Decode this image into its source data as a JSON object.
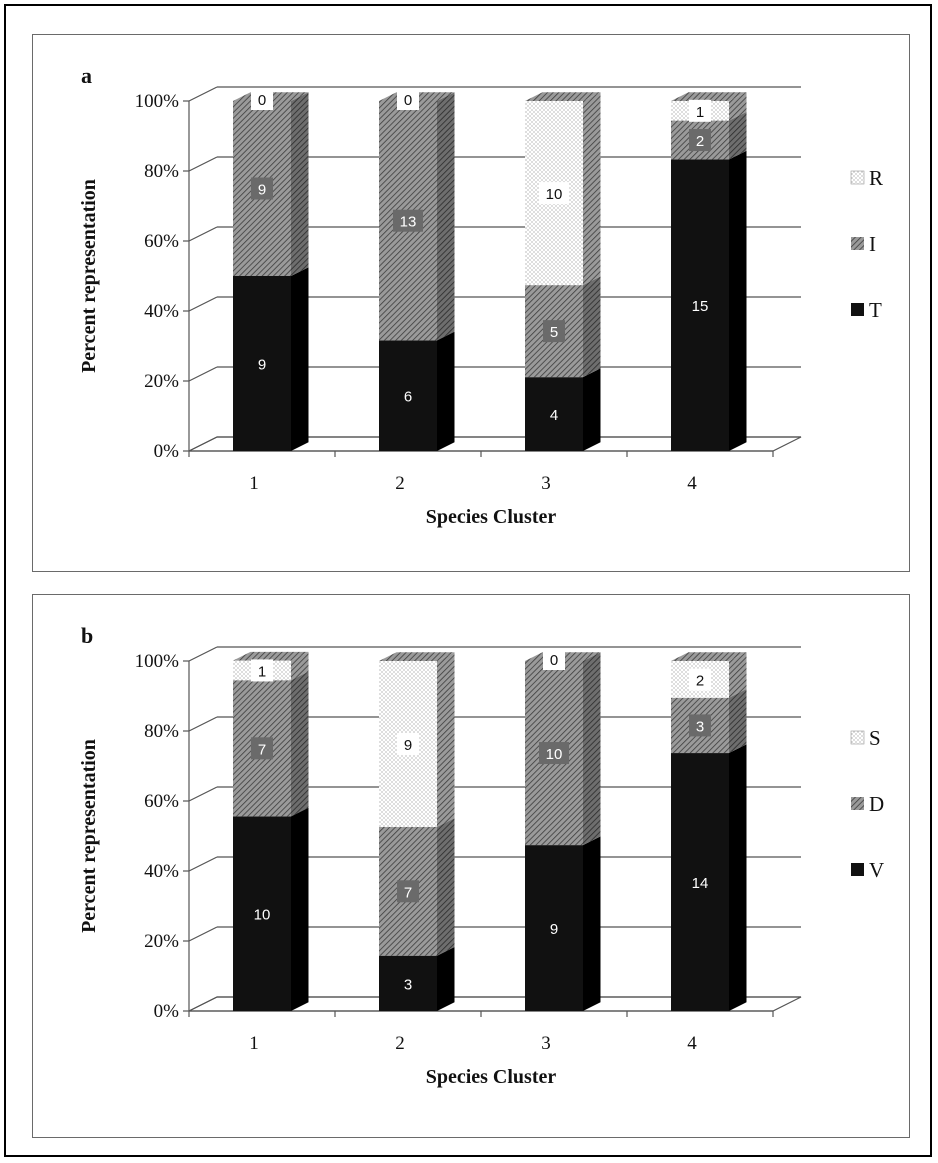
{
  "chart_data": [
    {
      "type": "bar",
      "subtype": "stacked-100-percent-3d",
      "panel_label": "a",
      "categories": [
        "1",
        "2",
        "3",
        "4"
      ],
      "series": [
        {
          "name": "T",
          "values": [
            9,
            6,
            4,
            15
          ],
          "percent": [
            50,
            31.6,
            21.1,
            83.3
          ],
          "labels": [
            "9",
            "6",
            "4",
            "15"
          ],
          "color": "#111111",
          "pattern": "solid"
        },
        {
          "name": "I",
          "values": [
            9,
            13,
            5,
            2
          ],
          "percent": [
            50,
            68.4,
            26.3,
            11.1
          ],
          "labels": [
            "9",
            "13",
            "5",
            "2"
          ],
          "color": "#8a8a8a",
          "pattern": "diagonal-hatch"
        },
        {
          "name": "R",
          "values": [
            0,
            0,
            10,
            1
          ],
          "percent": [
            0,
            0,
            52.6,
            5.6
          ],
          "labels": [
            "0",
            "0",
            "10",
            "1"
          ],
          "color": "#ffffff",
          "pattern": "dotted"
        }
      ],
      "xlabel": "Species Cluster",
      "ylabel": "Percent representation",
      "ylim": [
        0,
        100
      ],
      "yticks": [
        "0%",
        "20%",
        "40%",
        "60%",
        "80%",
        "100%"
      ],
      "grid": true,
      "legend": {
        "position": "right",
        "order": [
          "R",
          "I",
          "T"
        ]
      }
    },
    {
      "type": "bar",
      "subtype": "stacked-100-percent-3d",
      "panel_label": "b",
      "categories": [
        "1",
        "2",
        "3",
        "4"
      ],
      "series": [
        {
          "name": "V",
          "values": [
            10,
            3,
            9,
            14
          ],
          "percent": [
            55.6,
            15.8,
            47.4,
            73.7
          ],
          "labels": [
            "10",
            "3",
            "9",
            "14"
          ],
          "color": "#111111",
          "pattern": "solid"
        },
        {
          "name": "D",
          "values": [
            7,
            7,
            10,
            3
          ],
          "percent": [
            38.9,
            36.8,
            52.6,
            15.8
          ],
          "labels": [
            "7",
            "7",
            "10",
            "3"
          ],
          "color": "#8a8a8a",
          "pattern": "diagonal-hatch"
        },
        {
          "name": "S",
          "values": [
            1,
            9,
            0,
            2
          ],
          "percent": [
            5.6,
            47.4,
            0,
            10.5
          ],
          "labels": [
            "1",
            "9",
            "0",
            "2"
          ],
          "color": "#ffffff",
          "pattern": "dotted"
        }
      ],
      "xlabel": "Species Cluster",
      "ylabel": "Percent representation",
      "ylim": [
        0,
        100
      ],
      "yticks": [
        "0%",
        "20%",
        "40%",
        "60%",
        "80%",
        "100%"
      ],
      "grid": true,
      "legend": {
        "position": "right",
        "order": [
          "S",
          "D",
          "V"
        ]
      }
    }
  ]
}
